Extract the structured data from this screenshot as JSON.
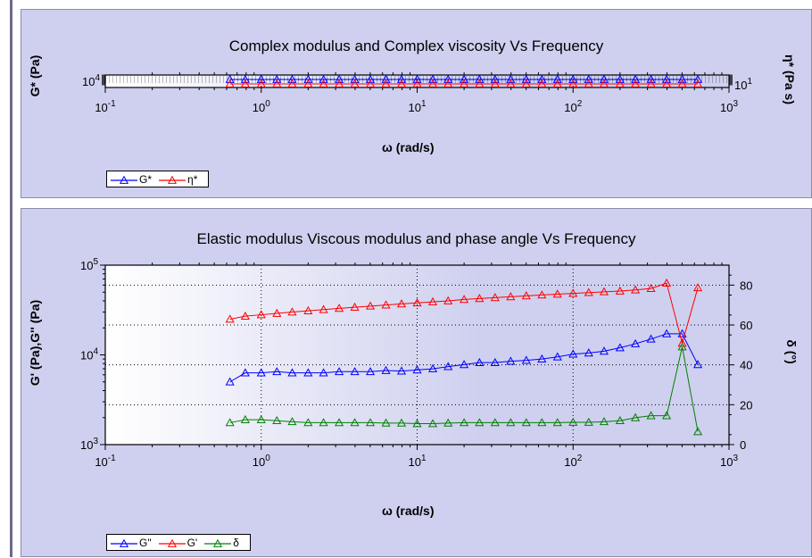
{
  "chart_data": [
    {
      "type": "line",
      "title": "Complex modulus and Complex viscosity Vs Frequency",
      "xlabel": "ω (rad/s)",
      "ylabel": "G* (Pa)",
      "y2label": "η* (Pa s)",
      "xscale": "log",
      "xlim": [
        0.1,
        1000
      ],
      "x_ticks": [
        "10-1",
        "100",
        "101",
        "102",
        "103"
      ],
      "y_ticks": [
        "104"
      ],
      "y2_ticks": [
        "101"
      ],
      "legend": "bottom-left",
      "grid": true,
      "x": [
        0.63,
        0.79,
        1.0,
        1.26,
        1.58,
        2.0,
        2.51,
        3.16,
        3.98,
        5.01,
        6.31,
        7.94,
        10,
        12.6,
        15.8,
        20,
        25.1,
        31.6,
        39.8,
        50.1,
        63.1,
        79.4,
        100,
        126,
        158,
        200,
        251,
        316,
        398,
        501,
        631
      ],
      "series": [
        {
          "name": "G*",
          "axis": "left",
          "color": "#0000ff",
          "values": [
            10300,
            10300,
            10300,
            10300,
            10300,
            10300,
            10300,
            10300,
            10300,
            10300,
            10300,
            10300,
            10300,
            10300,
            10300,
            10300,
            10300,
            10300,
            10300,
            10300,
            10300,
            10300,
            10300,
            10300,
            10300,
            10300,
            10300,
            10300,
            10300,
            10300,
            10300
          ]
        },
        {
          "name": "η*",
          "axis": "right",
          "color": "#ff0000",
          "values": [
            10.4,
            10.4,
            10.4,
            10.4,
            10.4,
            10.4,
            10.4,
            10.4,
            10.4,
            10.4,
            10.4,
            10.4,
            10.4,
            10.4,
            10.4,
            10.4,
            10.4,
            10.4,
            10.4,
            10.4,
            10.4,
            10.4,
            10.4,
            10.4,
            10.4,
            10.4,
            10.4,
            10.4,
            10.4,
            10.4,
            10.4
          ]
        }
      ]
    },
    {
      "type": "line",
      "title": "Elastic modulus Viscous modulus and phase angle Vs Frequency",
      "xlabel": "ω (rad/s)",
      "ylabel": "G' (Pa),G'' (Pa)",
      "y2label": "δ (°)",
      "xscale": "log",
      "yscale": "log",
      "xlim": [
        0.1,
        1000
      ],
      "ylim": [
        1000,
        100000
      ],
      "y2lim": [
        0,
        90
      ],
      "x_ticks": [
        "10-1",
        "100",
        "101",
        "102",
        "103"
      ],
      "y_ticks": [
        "103",
        "104",
        "105"
      ],
      "y2_ticks": [
        "0",
        "20",
        "40",
        "60",
        "80"
      ],
      "legend": "bottom-left",
      "grid": true,
      "x": [
        0.63,
        0.79,
        1.0,
        1.26,
        1.58,
        2.0,
        2.51,
        3.16,
        3.98,
        5.01,
        6.31,
        7.94,
        10,
        12.6,
        15.8,
        20,
        25.1,
        31.6,
        39.8,
        50.1,
        63.1,
        79.4,
        100,
        126,
        158,
        200,
        251,
        316,
        398,
        501,
        631
      ],
      "series": [
        {
          "name": "G\"",
          "axis": "left",
          "color": "#0000ff",
          "values": [
            5000,
            6300,
            6300,
            6500,
            6300,
            6300,
            6300,
            6500,
            6500,
            6500,
            6700,
            6600,
            6800,
            7000,
            7400,
            7800,
            8200,
            8200,
            8500,
            8700,
            9000,
            9500,
            10200,
            10500,
            11000,
            12000,
            13300,
            15000,
            17200,
            17200,
            7800
          ]
        },
        {
          "name": "G'",
          "axis": "left",
          "color": "#ff0000",
          "values": [
            25000,
            27000,
            28000,
            29000,
            30000,
            31000,
            32000,
            33000,
            34000,
            35000,
            36000,
            37000,
            38000,
            39000,
            40000,
            41500,
            42500,
            43500,
            44500,
            45500,
            46500,
            47500,
            48500,
            49500,
            50500,
            51500,
            53000,
            55000,
            63000,
            13500,
            56000
          ]
        },
        {
          "name": "δ",
          "axis": "right",
          "color": "#008000",
          "values": [
            11,
            12.5,
            12.5,
            12,
            11.5,
            11,
            11,
            11,
            11,
            11,
            10.8,
            10.8,
            10.5,
            10.5,
            10.8,
            11,
            11,
            11,
            11,
            11,
            11,
            11,
            11.2,
            11.2,
            11.5,
            12,
            13.5,
            14.5,
            14.5,
            49,
            6.5
          ]
        }
      ]
    }
  ]
}
